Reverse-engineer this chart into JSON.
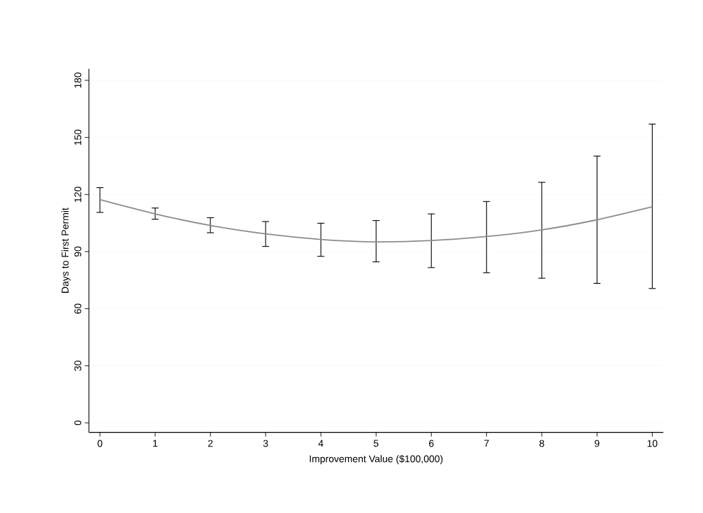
{
  "chart_data": {
    "type": "line",
    "xlabel": "Improvement Value ($100,000)",
    "ylabel": "Days to First Permit",
    "x": [
      0,
      1,
      2,
      3,
      4,
      5,
      6,
      7,
      8,
      9,
      10
    ],
    "series": [
      {
        "color": "#8c8c8c",
        "values": [
          117.3,
          109.8,
          103.7,
          99.3,
          96.4,
          95.1,
          95.8,
          97.9,
          101.4,
          106.7,
          113.5
        ],
        "errors": [
          [
            110.6,
            123.6
          ],
          [
            107.0,
            112.9
          ],
          [
            99.9,
            107.8
          ],
          [
            92.7,
            105.8
          ],
          [
            87.5,
            104.9
          ],
          [
            84.6,
            106.3
          ],
          [
            81.6,
            109.8
          ],
          [
            78.9,
            116.3
          ],
          [
            76.0,
            126.4
          ],
          [
            73.3,
            140.2
          ],
          [
            70.6,
            157.0
          ]
        ]
      }
    ],
    "xlim": [
      -0.2,
      10.2
    ],
    "ylim": [
      -5,
      186
    ],
    "xticks": [
      0,
      1,
      2,
      3,
      4,
      5,
      6,
      7,
      8,
      9,
      10
    ],
    "yticks": [
      0,
      30,
      60,
      90,
      120,
      150,
      180
    ],
    "grid": "y",
    "marker": "none",
    "line_style": "solid",
    "legend": false
  }
}
